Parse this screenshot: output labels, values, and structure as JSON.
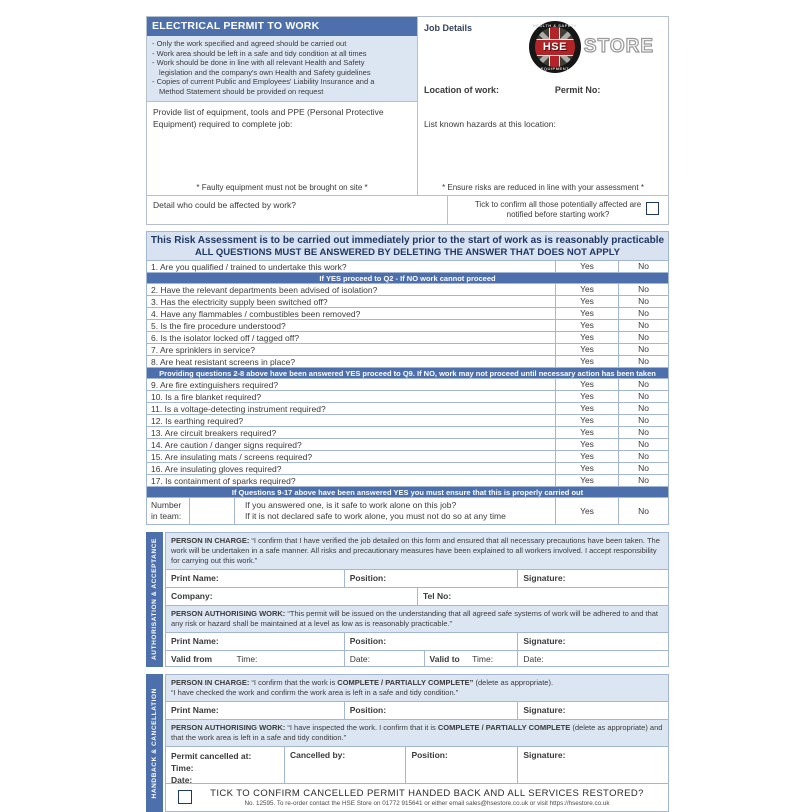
{
  "colors": {
    "blue": "#4d70ad",
    "lightblue": "#dce6f2",
    "headband": "#d9e2f0",
    "navy": "#1f3864",
    "line": "#a3b6d4",
    "outer": "#b6bfcc",
    "text": "#3a3a3a",
    "logo_red": "#b32428"
  },
  "top": {
    "title": "ELECTRICAL PERMIT TO WORK",
    "rules_lines": [
      "- Only the work specified and agreed should be carried out",
      "- Work area should be left in a safe and tidy condition at all times",
      "- Work should be done in line with all relevant Health and Safety",
      "legislation and the company's own Health and Safety guidelines",
      "- Copies of current Public and Employees' Liability Insurance and a",
      "Method Statement should be provided on request"
    ],
    "equipment_prompt": "Provide list of equipment, tools and PPE (Personal Protective Equipment) required to complete job:",
    "faulty_note": "* Faulty equipment must not be brought on site *",
    "job_details_label": "Job Details",
    "location_label": "Location of work:",
    "permit_no_label": "Permit No:",
    "hazards_label": "List known hazards at this location:",
    "ensure_note": "* Ensure risks are reduced in line with your assessment *",
    "affected_label": "Detail who could be affected by work?",
    "tick_confirm_label": "Tick to confirm all those potentially affected are notified before starting work?"
  },
  "logo": {
    "arc_top": "HEALTH & SAFETY",
    "hse": "HSE",
    "arc_bottom": "EQUIPMENT",
    "store": "STORE"
  },
  "risk": {
    "intro_line1": "This Risk Assessment is to be carried out immediately prior to the start of work as is reasonably practicable",
    "intro_line2": "ALL QUESTIONS MUST BE ANSWERED BY DELETING THE ANSWER THAT DOES NOT APPLY",
    "yes_label": "Yes",
    "no_label": "No",
    "rows": [
      {
        "type": "question",
        "text": "1. Are you qualified / trained to undertake this work?"
      },
      {
        "type": "divider",
        "text": "If YES proceed to Q2 - If NO work cannot proceed"
      },
      {
        "type": "question",
        "text": "2. Have the relevant departments been advised of isolation?"
      },
      {
        "type": "question",
        "text": "3. Has the electricity supply been switched off?"
      },
      {
        "type": "question",
        "text": "4. Have any flammables / combustibles been removed?"
      },
      {
        "type": "question",
        "text": "5. Is the fire procedure understood?"
      },
      {
        "type": "question",
        "text": "6. Is the isolator locked off / tagged off?"
      },
      {
        "type": "question",
        "text": "7. Are sprinklers in service?"
      },
      {
        "type": "question",
        "text": "8. Are heat resistant screens in place?"
      },
      {
        "type": "divider",
        "text": "Providing questions 2-8 above have been answered YES proceed to Q9. If NO, work may not proceed until necessary action has been taken"
      },
      {
        "type": "question",
        "text": "9. Are fire extinguishers required?"
      },
      {
        "type": "question",
        "text": "10. Is a fire blanket required?"
      },
      {
        "type": "question",
        "text": "11. Is a voltage-detecting instrument required?"
      },
      {
        "type": "question",
        "text": "12. Is earthing required?"
      },
      {
        "type": "question",
        "text": "13. Are circuit breakers required?"
      },
      {
        "type": "question",
        "text": "14. Are caution / danger signs required?"
      },
      {
        "type": "question",
        "text": "15. Are insulating mats / screens required?"
      },
      {
        "type": "question",
        "text": "16. Are insulating gloves required?"
      },
      {
        "type": "question",
        "text": "17. Is containment of sparks required?"
      },
      {
        "type": "divider",
        "text": "If Questions 9-17 above have been answered YES you must ensure that this is properly carried out"
      }
    ],
    "team": {
      "label_line1": "Number",
      "label_line2": "in team:",
      "line1": "If you answered one, is it safe to work alone on this job?",
      "line2": "If it is not declared safe to work alone, you must not do so at any time"
    }
  },
  "auth": {
    "band_label": "AUTHORISATION & ACCEPTANCE",
    "pic_label": "PERSON IN CHARGE:",
    "pic_text": " “I confirm that I have verified the job detailed on this form and ensured that all necessary precautions have been taken. The work will be undertaken in a safe manner. All risks and precautionary measures have been explained to all workers involved. I accept responsibility for carrying out this work.”",
    "print_name_label": "Print Name:",
    "position_label": "Position:",
    "signature_label": "Signature:",
    "company_label": "Company:",
    "tel_label": "Tel No:",
    "paw_label": "PERSON AUTHORISING WORK:",
    "paw_text": " “This permit will be issued on the understanding that all agreed safe systems of work will be adhered to and that any risk or hazard shall be maintained at a level as low as is reasonably practicable.”",
    "valid_from_label": "Valid from",
    "valid_to_label": "Valid to",
    "time_label": "Time:",
    "date_label": "Date:"
  },
  "handback": {
    "band_label": "HANDBACK & CANCELLATION",
    "pic_label": "PERSON IN CHARGE:",
    "pic_pre": " “I confirm that the work is ",
    "pic_bold": "COMPLETE / PARTIALLY COMPLETE”",
    "pic_post": " (delete as appropriate).",
    "pic_line2": "“I have checked the work and confirm the work area is left in a safe and tidy condition.”",
    "print_name_label": "Print Name:",
    "position_label": "Position:",
    "signature_label": "Signature:",
    "paw_label": "PERSON AUTHORISING WORK:",
    "paw_pre": " “I have inspected the work. I confirm that it is ",
    "paw_bold": "COMPLETE / PARTIALLY COMPLETE",
    "paw_post": " (delete as appropriate) and that the work area is left in a safe and tidy condition.”",
    "permit_cancelled_label": "Permit cancelled at:",
    "time_label": "Time:",
    "date_label": "Date:",
    "cancelled_by_label": "Cancelled by:",
    "position2_label": "Position:",
    "signature2_label": "Signature:",
    "footer_tick_text": "TICK TO CONFIRM CANCELLED PERMIT HANDED BACK AND ALL SERVICES RESTORED?",
    "footer_small_text": "No. 12595. To re-order contact the HSE Store on 01772 915641 or either email sales@hsestore.co.uk or visit https://hsestore.co.uk"
  }
}
